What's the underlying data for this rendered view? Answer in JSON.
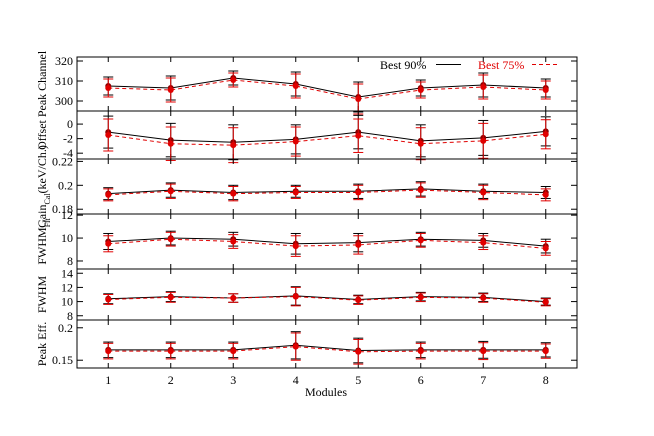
{
  "chart_data": {
    "type": "scatter",
    "xlabel": "Modules",
    "x_ticks": [
      "1",
      "2",
      "3",
      "4",
      "5",
      "6",
      "7",
      "8"
    ],
    "x": [
      1,
      2,
      3,
      4,
      5,
      6,
      7,
      8
    ],
    "xlim": [
      0.5,
      8.5
    ],
    "legend": {
      "placement": "top-right",
      "entries": [
        {
          "name": "Best 90%",
          "color": "#000000",
          "dash": "solid"
        },
        {
          "name": "Best 75%",
          "color": "#e00000",
          "dash": "dashed"
        }
      ]
    },
    "panels": [
      {
        "ylabel": "Peak Channel",
        "ylabel_sub": "",
        "ylim": [
          295,
          322
        ],
        "y_ticks": [
          "300",
          "310",
          "320"
        ],
        "y_tick_values": [
          300,
          310,
          320
        ],
        "series": [
          {
            "name": "Best 90%",
            "values": [
              307.5,
              306.5,
              311.5,
              308.5,
              302,
              306.5,
              308,
              306.5
            ],
            "errors": [
              4.5,
              6,
              3.5,
              6,
              7.5,
              4,
              6,
              4.5
            ]
          },
          {
            "name": "Best 75%",
            "values": [
              306.5,
              305.5,
              310.5,
              307.5,
              301,
              305.5,
              307,
              305.5
            ],
            "errors": [
              4.5,
              6,
              3.5,
              6,
              7.5,
              4,
              6,
              4.5
            ]
          }
        ]
      },
      {
        "ylabel": "Offset",
        "ylabel_sub": "",
        "ylim": [
          -4.8,
          1.8
        ],
        "y_ticks": [
          "-4",
          "-2",
          "0"
        ],
        "y_tick_values": [
          -4,
          -2,
          0
        ],
        "series": [
          {
            "name": "Best 90%",
            "values": [
              -1.1,
              -2.2,
              -2.5,
              -2.1,
              -1.1,
              -2.3,
              -1.9,
              -1.0
            ],
            "errors": [
              2.2,
              2.3,
              2.4,
              2.0,
              2.3,
              2.2,
              2.4,
              2.0
            ]
          },
          {
            "name": "Best 75%",
            "values": [
              -1.5,
              -2.7,
              -2.9,
              -2.4,
              -1.6,
              -2.7,
              -2.3,
              -1.4
            ],
            "errors": [
              2.2,
              2.3,
              2.4,
              2.0,
              2.3,
              2.2,
              2.4,
              2.0
            ]
          }
        ]
      },
      {
        "ylabel": "Gain(keV/Ch.)",
        "ylabel_sub": "Cal",
        "ylim": [
          0.176,
          0.222
        ],
        "y_ticks": [
          "0.18",
          "0.2",
          "0.22"
        ],
        "y_tick_values": [
          0.18,
          0.2,
          0.22
        ],
        "series": [
          {
            "name": "Best 90%",
            "values": [
              0.193,
              0.196,
              0.194,
              0.195,
              0.195,
              0.197,
              0.195,
              0.194
            ],
            "errors": [
              0.005,
              0.006,
              0.006,
              0.005,
              0.006,
              0.006,
              0.006,
              0.005
            ]
          },
          {
            "name": "Best 75%",
            "values": [
              0.192,
              0.195,
              0.193,
              0.194,
              0.194,
              0.196,
              0.194,
              0.192
            ],
            "errors": [
              0.005,
              0.006,
              0.006,
              0.005,
              0.006,
              0.006,
              0.006,
              0.005
            ]
          }
        ]
      },
      {
        "ylabel": "FWHM",
        "ylabel_sub": "Fit",
        "ylim": [
          7.3,
          12.1
        ],
        "y_ticks": [
          "8",
          "10",
          "12"
        ],
        "y_tick_values": [
          8,
          10,
          12
        ],
        "series": [
          {
            "name": "Best 90%",
            "values": [
              9.7,
              10.0,
              9.9,
              9.5,
              9.6,
              9.9,
              9.8,
              9.3
            ],
            "errors": [
              0.7,
              0.6,
              0.6,
              0.9,
              0.8,
              0.6,
              0.6,
              0.6
            ]
          },
          {
            "name": "Best 75%",
            "values": [
              9.5,
              9.9,
              9.7,
              9.3,
              9.4,
              9.8,
              9.6,
              9.1
            ],
            "errors": [
              0.7,
              0.6,
              0.6,
              0.9,
              0.8,
              0.6,
              0.6,
              0.6
            ]
          }
        ]
      },
      {
        "ylabel": "FWHM",
        "ylabel_sub": "",
        "ylim": [
          7.4,
          14.6
        ],
        "y_ticks": [
          "8",
          "10",
          "12",
          "14"
        ],
        "y_tick_values": [
          8,
          10,
          12,
          14
        ],
        "series": [
          {
            "name": "Best 90%",
            "values": [
              10.4,
              10.7,
              10.5,
              10.8,
              10.3,
              10.7,
              10.6,
              10.0
            ],
            "errors": [
              0.7,
              0.7,
              0.6,
              1.3,
              0.6,
              0.6,
              0.6,
              0.5
            ]
          },
          {
            "name": "Best 75%",
            "values": [
              10.3,
              10.6,
              10.5,
              10.7,
              10.2,
              10.6,
              10.5,
              9.9
            ],
            "errors": [
              0.7,
              0.7,
              0.6,
              1.3,
              0.6,
              0.6,
              0.6,
              0.5
            ]
          }
        ]
      },
      {
        "ylabel": "Peak Eff.",
        "ylabel_sub": "",
        "ylim": [
          0.138,
          0.212
        ],
        "y_ticks": [
          "0.15",
          "0.2"
        ],
        "y_tick_values": [
          0.15,
          0.2
        ],
        "series": [
          {
            "name": "Best 90%",
            "values": [
              0.166,
              0.166,
              0.166,
              0.173,
              0.165,
              0.166,
              0.166,
              0.166
            ],
            "errors": [
              0.012,
              0.012,
              0.012,
              0.021,
              0.019,
              0.012,
              0.013,
              0.011
            ]
          },
          {
            "name": "Best 75%",
            "values": [
              0.164,
              0.164,
              0.164,
              0.171,
              0.163,
              0.164,
              0.164,
              0.164
            ],
            "errors": [
              0.012,
              0.012,
              0.012,
              0.021,
              0.019,
              0.012,
              0.013,
              0.011
            ]
          }
        ]
      }
    ]
  }
}
